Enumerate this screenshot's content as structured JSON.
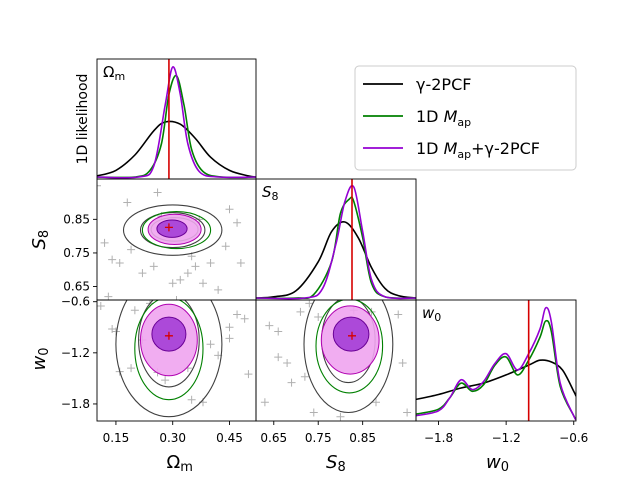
{
  "chart_data": {
    "type": "corner-plot",
    "parameters": [
      {
        "symbol": "Ω",
        "sub": "m",
        "range": [
          0.1,
          0.52
        ],
        "ticks": [
          0.15,
          0.3,
          0.45
        ],
        "tick_labels": [
          "0.15",
          "0.30",
          "0.45"
        ],
        "truth": 0.29
      },
      {
        "symbol": "S",
        "sub": "8",
        "range": [
          0.61,
          0.97
        ],
        "ticks": [
          0.65,
          0.75,
          0.85
        ],
        "tick_labels": [
          "0.65",
          "0.75",
          "0.85"
        ],
        "truth": 0.826
      },
      {
        "symbol": "w",
        "sub": "0",
        "range": [
          -2.0,
          -0.58
        ],
        "ticks": [
          -1.8,
          -1.2,
          -0.6
        ],
        "tick_labels": [
          "−1.8",
          "−1.2",
          "−0.6"
        ],
        "truth": -1.0
      }
    ],
    "diag_ylabel": "1D likelihood",
    "truth_color": "#d60000",
    "legend": [
      {
        "label": "γ-2PCF",
        "color": "#000000"
      },
      {
        "label": "1D M",
        "sub": "ap",
        "color": "#008000"
      },
      {
        "label": "1D M",
        "sub": "ap",
        "suffix": "+γ-2PCF",
        "color": "#9400d3"
      }
    ],
    "series": [
      {
        "name": "gamma-2PCF",
        "color": "#000000",
        "omega_m": {
          "x": [
            0.1,
            0.15,
            0.2,
            0.25,
            0.28,
            0.32,
            0.36,
            0.4,
            0.45,
            0.5,
            0.52
          ],
          "y": [
            0.01,
            0.06,
            0.2,
            0.42,
            0.5,
            0.48,
            0.35,
            0.18,
            0.06,
            0.01,
            0.0
          ]
        },
        "s8": {
          "x": [
            0.61,
            0.65,
            0.7,
            0.75,
            0.78,
            0.81,
            0.84,
            0.87,
            0.9,
            0.93,
            0.97
          ],
          "y": [
            0.0,
            0.01,
            0.06,
            0.3,
            0.55,
            0.63,
            0.5,
            0.25,
            0.08,
            0.02,
            0.0
          ]
        },
        "w0": {
          "x": [
            -2.0,
            -1.8,
            -1.6,
            -1.4,
            -1.2,
            -1.0,
            -0.9,
            -0.8,
            -0.7,
            -0.6,
            -0.58
          ],
          "y": [
            0.12,
            0.15,
            0.19,
            0.22,
            0.27,
            0.33,
            0.36,
            0.35,
            0.3,
            0.17,
            0.14
          ]
        }
      },
      {
        "name": "1D Map",
        "color": "#008000",
        "omega_m": {
          "x": [
            0.1,
            0.2,
            0.24,
            0.27,
            0.29,
            0.31,
            0.33,
            0.35,
            0.38,
            0.43,
            0.52
          ],
          "y": [
            0.0,
            0.0,
            0.06,
            0.3,
            0.75,
            0.92,
            0.65,
            0.25,
            0.05,
            0.0,
            0.0
          ]
        },
        "s8": {
          "x": [
            0.61,
            0.7,
            0.74,
            0.78,
            0.8,
            0.82,
            0.83,
            0.85,
            0.87,
            0.9,
            0.97
          ],
          "y": [
            0.0,
            0.0,
            0.03,
            0.3,
            0.7,
            0.82,
            0.8,
            0.5,
            0.12,
            0.01,
            0.0
          ]
        },
        "w0": {
          "x": [
            -2.0,
            -1.8,
            -1.7,
            -1.6,
            -1.5,
            -1.4,
            -1.3,
            -1.2,
            -1.1,
            -1.0,
            -0.9,
            -0.85,
            -0.8,
            -0.72,
            -0.6,
            -0.58
          ],
          "y": [
            0.03,
            0.06,
            0.13,
            0.22,
            0.17,
            0.21,
            0.33,
            0.38,
            0.27,
            0.36,
            0.5,
            0.6,
            0.54,
            0.2,
            0.02,
            0.0
          ]
        }
      },
      {
        "name": "1D Map+gamma-2PCF",
        "color": "#9400d3",
        "omega_m": {
          "x": [
            0.1,
            0.21,
            0.25,
            0.28,
            0.3,
            0.32,
            0.34,
            0.37,
            0.42,
            0.52
          ],
          "y": [
            0.0,
            0.0,
            0.1,
            0.65,
            1.0,
            0.75,
            0.3,
            0.05,
            0.0,
            0.0
          ]
        },
        "s8": {
          "x": [
            0.61,
            0.72,
            0.76,
            0.79,
            0.81,
            0.83,
            0.85,
            0.87,
            0.9,
            0.97
          ],
          "y": [
            0.0,
            0.0,
            0.08,
            0.45,
            0.8,
            0.92,
            0.55,
            0.15,
            0.01,
            0.0
          ]
        },
        "w0": {
          "x": [
            -2.0,
            -1.8,
            -1.7,
            -1.6,
            -1.5,
            -1.4,
            -1.3,
            -1.2,
            -1.1,
            -1.0,
            -0.9,
            -0.85,
            -0.8,
            -0.72,
            -0.6,
            -0.58
          ],
          "y": [
            0.02,
            0.05,
            0.13,
            0.24,
            0.18,
            0.23,
            0.34,
            0.4,
            0.3,
            0.4,
            0.55,
            0.68,
            0.6,
            0.22,
            0.02,
            0.0
          ]
        }
      }
    ],
    "samples_s8_omega": [
      [
        0.1,
        0.95
      ],
      [
        0.12,
        0.78
      ],
      [
        0.14,
        0.73
      ],
      [
        0.16,
        0.72
      ],
      [
        0.19,
        0.76
      ],
      [
        0.22,
        0.69
      ],
      [
        0.25,
        0.71
      ],
      [
        0.27,
        0.86
      ],
      [
        0.32,
        0.67
      ],
      [
        0.34,
        0.69
      ],
      [
        0.36,
        0.71
      ],
      [
        0.38,
        0.66
      ],
      [
        0.4,
        0.72
      ],
      [
        0.44,
        0.77
      ],
      [
        0.45,
        0.88
      ],
      [
        0.47,
        0.84
      ],
      [
        0.48,
        0.72
      ],
      [
        0.37,
        0.85
      ],
      [
        0.35,
        0.74
      ],
      [
        0.3,
        0.66
      ],
      [
        0.42,
        0.64
      ],
      [
        0.31,
        0.61
      ],
      [
        0.18,
        0.9
      ],
      [
        0.26,
        0.93
      ],
      [
        0.13,
        0.62
      ]
    ],
    "samples_w0_omega": [
      [
        0.11,
        -0.65
      ],
      [
        0.14,
        -0.92
      ],
      [
        0.16,
        -1.42
      ],
      [
        0.19,
        -1.38
      ],
      [
        0.2,
        -0.7
      ],
      [
        0.24,
        -0.62
      ],
      [
        0.26,
        -1.43
      ],
      [
        0.28,
        -1.52
      ],
      [
        0.34,
        -1.38
      ],
      [
        0.38,
        -1.78
      ],
      [
        0.4,
        -1.1
      ],
      [
        0.42,
        -1.23
      ],
      [
        0.45,
        -1.03
      ],
      [
        0.47,
        -0.75
      ],
      [
        0.49,
        -0.8
      ],
      [
        0.45,
        -0.9
      ],
      [
        0.15,
        -0.95
      ],
      [
        0.22,
        -1.05
      ],
      [
        0.35,
        -1.75
      ],
      [
        0.5,
        -1.45
      ]
    ],
    "samples_w0_s8": [
      [
        0.63,
        -1.78
      ],
      [
        0.66,
        -1.25
      ],
      [
        0.68,
        -1.32
      ],
      [
        0.69,
        -1.55
      ],
      [
        0.71,
        -0.72
      ],
      [
        0.72,
        -1.48
      ],
      [
        0.74,
        -1.9
      ],
      [
        0.75,
        -0.78
      ],
      [
        0.8,
        -1.95
      ],
      [
        0.83,
        -0.7
      ],
      [
        0.87,
        -0.72
      ],
      [
        0.88,
        -1.78
      ],
      [
        0.93,
        -0.75
      ],
      [
        0.94,
        -1.32
      ],
      [
        0.95,
        -1.9
      ],
      [
        0.66,
        -0.95
      ],
      [
        0.73,
        -0.62
      ],
      [
        0.64,
        -0.88
      ]
    ],
    "contours": {
      "s8_omega": [
        {
          "series": "gamma-2PCF",
          "level": "95",
          "cx": 0.3,
          "cy": 0.818,
          "rx": 0.13,
          "ry": 0.075,
          "fill": false
        },
        {
          "series": "gamma-2PCF",
          "level": "68",
          "cx": 0.3,
          "cy": 0.818,
          "rx": 0.085,
          "ry": 0.052,
          "fill": false
        },
        {
          "series": "1D Map",
          "level": "95",
          "cx": 0.31,
          "cy": 0.818,
          "rx": 0.09,
          "ry": 0.055,
          "fill": false
        },
        {
          "series": "1D Map",
          "level": "68",
          "cx": 0.305,
          "cy": 0.82,
          "rx": 0.062,
          "ry": 0.035,
          "fill": false
        },
        {
          "series": "1D Map+gamma-2PCF",
          "level": "95",
          "cx": 0.305,
          "cy": 0.82,
          "rx": 0.07,
          "ry": 0.045,
          "fill": true
        },
        {
          "series": "1D Map+gamma-2PCF",
          "level": "68",
          "cx": 0.298,
          "cy": 0.822,
          "rx": 0.04,
          "ry": 0.026,
          "fill": true
        }
      ],
      "w0_omega": [
        {
          "series": "gamma-2PCF",
          "level": "95",
          "cx": 0.29,
          "cy": -1.1,
          "rx": 0.14,
          "ry": 0.85,
          "fill": false
        },
        {
          "series": "gamma-2PCF",
          "level": "68",
          "cx": 0.29,
          "cy": -1.05,
          "rx": 0.08,
          "ry": 0.55,
          "fill": false
        },
        {
          "series": "1D Map",
          "level": "95",
          "cx": 0.29,
          "cy": -1.15,
          "rx": 0.09,
          "ry": 0.6,
          "fill": false
        },
        {
          "series": "1D Map+gamma-2PCF",
          "level": "95",
          "cx": 0.29,
          "cy": -1.05,
          "rx": 0.075,
          "ry": 0.42,
          "fill": true
        },
        {
          "series": "1D Map+gamma-2PCF",
          "level": "68",
          "cx": 0.29,
          "cy": -0.98,
          "rx": 0.045,
          "ry": 0.2,
          "fill": true
        }
      ],
      "w0_s8": [
        {
          "series": "gamma-2PCF",
          "level": "95",
          "cx": 0.818,
          "cy": -1.1,
          "rx": 0.1,
          "ry": 0.8,
          "fill": false
        },
        {
          "series": "gamma-2PCF",
          "level": "68",
          "cx": 0.818,
          "cy": -1.05,
          "rx": 0.06,
          "ry": 0.5,
          "fill": false
        },
        {
          "series": "1D Map",
          "level": "95",
          "cx": 0.82,
          "cy": -1.12,
          "rx": 0.075,
          "ry": 0.55,
          "fill": false
        },
        {
          "series": "1D Map+gamma-2PCF",
          "level": "95",
          "cx": 0.822,
          "cy": -1.05,
          "rx": 0.065,
          "ry": 0.4,
          "fill": true
        },
        {
          "series": "1D Map+gamma-2PCF",
          "level": "68",
          "cx": 0.824,
          "cy": -0.98,
          "rx": 0.04,
          "ry": 0.2,
          "fill": true
        }
      ]
    }
  }
}
